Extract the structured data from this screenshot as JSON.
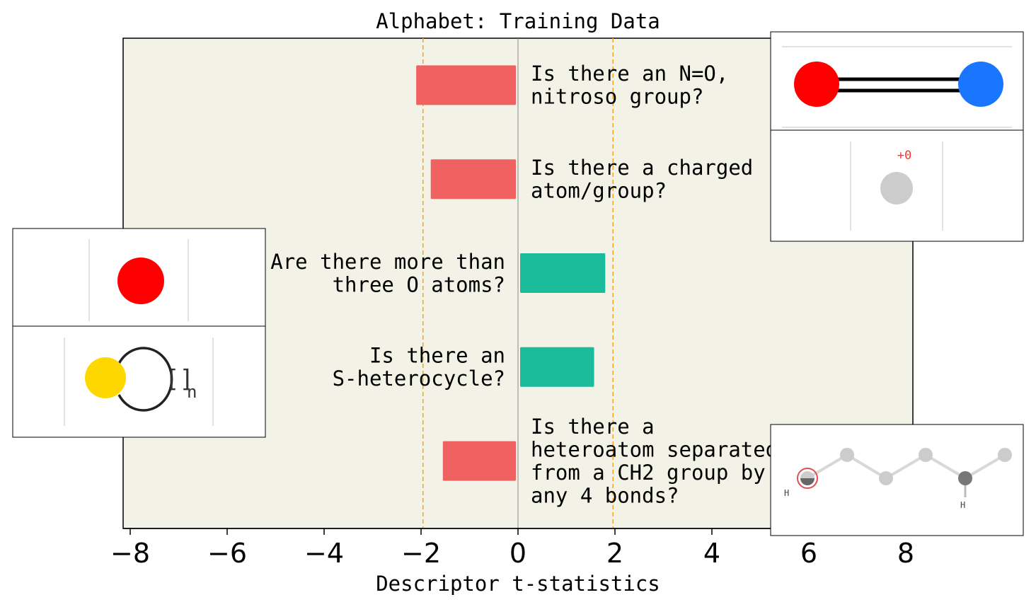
{
  "chart_data": {
    "type": "bar",
    "orientation": "horizontal",
    "title": "Alphabet: Training Data",
    "xlabel": "Descriptor t-statistics",
    "ylabel": "",
    "xlim": [
      -8.2,
      8.2
    ],
    "xticks": [
      -8,
      -6,
      -4,
      -2,
      0,
      2,
      4,
      6,
      8
    ],
    "xtick_labels": [
      "−8",
      "−6",
      "−4",
      "−2",
      "0",
      "2",
      "4",
      "6",
      "8"
    ],
    "significance_lines": [
      -1.96,
      1.96
    ],
    "grid": false,
    "background_color": "#f3f2e7",
    "colors": {
      "negative": "#f06262",
      "positive": "#1abc9c",
      "significance_line": "#f5a623",
      "zero_line": "#888888"
    },
    "bars": [
      {
        "label": [
          "Is there an N=O,",
          "nitroso group?"
        ],
        "value": -2.1
      },
      {
        "label": [
          "Is there a charged",
          "atom/group?"
        ],
        "value": -1.8
      },
      {
        "label": [
          "Are there more than",
          "three O atoms?"
        ],
        "value": 1.8
      },
      {
        "label": [
          "Is there an",
          "S-heterocycle?"
        ],
        "value": 1.57
      },
      {
        "label": [
          "Is there a",
          "heteroatom separated",
          "from a CH2 group by",
          "any 4 bonds?"
        ],
        "value": -1.55
      }
    ],
    "insets": [
      {
        "bar": 0,
        "icon": "nitroso-bond-molecule-icon",
        "atom_colors": [
          "#ff0000",
          "#1a75ff"
        ]
      },
      {
        "bar": 1,
        "icon": "charged-atom-icon",
        "charge_text": "+0",
        "atom_color": "#cccccc"
      },
      {
        "bar": 2,
        "icon": "oxygen-atom-icon",
        "atom_color": "#ff0000"
      },
      {
        "bar": 3,
        "icon": "sulfur-ring-icon",
        "atom_color": "#ffd700",
        "ring_text": "[]",
        "ring_subscript": "n"
      },
      {
        "bar": 4,
        "icon": "heteroatom-chain-icon",
        "atom_color": "#cccccc",
        "hydrogen_labels": [
          "H",
          "H"
        ]
      }
    ]
  }
}
